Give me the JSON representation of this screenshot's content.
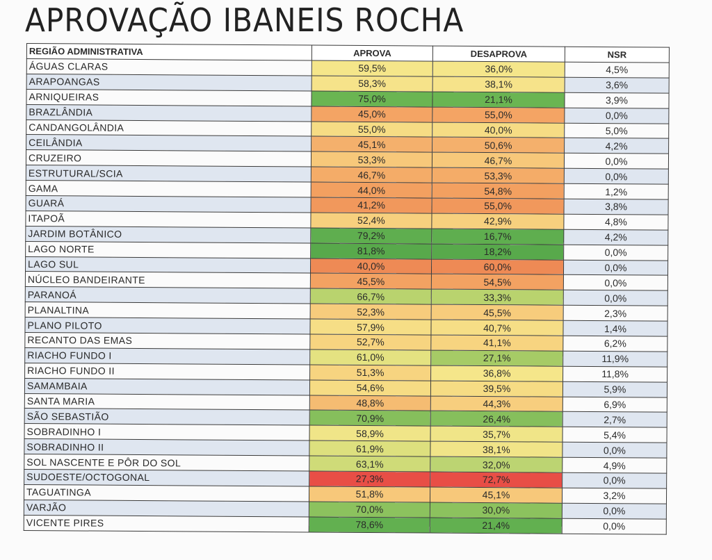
{
  "title": "APROVAÇÃO IBANEIS ROCHA",
  "headers": {
    "region": "REGIÃO ADMINISTRATIVA",
    "approve": "APROVA",
    "disapprove": "DESAPROVA",
    "nsr": "NSR"
  },
  "rows": [
    {
      "region": "ÁGUAS CLARAS",
      "approve": "59,5%",
      "disapprove": "36,0%",
      "nsr": "4,5%",
      "approve_color": "#f5e68a",
      "disapprove_color": "#f5e68a"
    },
    {
      "region": "ARAPOANGAS",
      "approve": "58,3%",
      "disapprove": "38,1%",
      "nsr": "3,6%",
      "approve_color": "#f6e38a",
      "disapprove_color": "#f6e38a"
    },
    {
      "region": "ARNIQUEIRAS",
      "approve": "75,0%",
      "disapprove": "21,1%",
      "nsr": "3,9%",
      "approve_color": "#6ab552",
      "disapprove_color": "#6ab552"
    },
    {
      "region": "BRAZLÂNDIA",
      "approve": "45,0%",
      "disapprove": "55,0%",
      "nsr": "0,0%",
      "approve_color": "#f4a464",
      "disapprove_color": "#f4a464"
    },
    {
      "region": "CANDANGOLÂNDIA",
      "approve": "55,0%",
      "disapprove": "40,0%",
      "nsr": "5,0%",
      "approve_color": "#f6dc84",
      "disapprove_color": "#f6dc84"
    },
    {
      "region": "CEILÂNDIA",
      "approve": "45,1%",
      "disapprove": "50,6%",
      "nsr": "4,2%",
      "approve_color": "#f4b06c",
      "disapprove_color": "#f4b06c"
    },
    {
      "region": "CRUZEIRO",
      "approve": "53,3%",
      "disapprove": "46,7%",
      "nsr": "0,0%",
      "approve_color": "#f7c87a",
      "disapprove_color": "#f7c87a"
    },
    {
      "region": "ESTRUTURAL/SCIA",
      "approve": "46,7%",
      "disapprove": "53,3%",
      "nsr": "0,0%",
      "approve_color": "#f4ac68",
      "disapprove_color": "#f4ac68"
    },
    {
      "region": "GAMA",
      "approve": "44,0%",
      "disapprove": "54,8%",
      "nsr": "1,2%",
      "approve_color": "#f3a060",
      "disapprove_color": "#f3a060"
    },
    {
      "region": "GUARÁ",
      "approve": "41,2%",
      "disapprove": "55,0%",
      "nsr": "3,8%",
      "approve_color": "#f1985c",
      "disapprove_color": "#f1985c"
    },
    {
      "region": "ITAPOÃ",
      "approve": "52,4%",
      "disapprove": "42,9%",
      "nsr": "4,8%",
      "approve_color": "#f7d07e",
      "disapprove_color": "#f7d07e"
    },
    {
      "region": "JARDIM BOTÂNICO",
      "approve": "79,2%",
      "disapprove": "16,7%",
      "nsr": "4,2%",
      "approve_color": "#5fae4f",
      "disapprove_color": "#5fae4f"
    },
    {
      "region": "LAGO NORTE",
      "approve": "81,8%",
      "disapprove": "18,2%",
      "nsr": "0,0%",
      "approve_color": "#58a94b",
      "disapprove_color": "#58a94b"
    },
    {
      "region": "LAGO SUL",
      "approve": "40,0%",
      "disapprove": "60,0%",
      "nsr": "0,0%",
      "approve_color": "#ee8a55",
      "disapprove_color": "#ee8a55"
    },
    {
      "region": "NÚCLEO BANDEIRANTE",
      "approve": "45,5%",
      "disapprove": "54,5%",
      "nsr": "0,0%",
      "approve_color": "#f3a262",
      "disapprove_color": "#f3a262"
    },
    {
      "region": "PARANOÁ",
      "approve": "66,7%",
      "disapprove": "33,3%",
      "nsr": "0,0%",
      "approve_color": "#b9d36e",
      "disapprove_color": "#b9d36e"
    },
    {
      "region": "PLANALTINA",
      "approve": "52,3%",
      "disapprove": "45,5%",
      "nsr": "2,3%",
      "approve_color": "#f7cc7c",
      "disapprove_color": "#f7cc7c"
    },
    {
      "region": "PLANO PILOTO",
      "approve": "57,9%",
      "disapprove": "40,7%",
      "nsr": "1,4%",
      "approve_color": "#f6de86",
      "disapprove_color": "#f6de86"
    },
    {
      "region": "RECANTO DAS EMAS",
      "approve": "52,7%",
      "disapprove": "41,1%",
      "nsr": "6,2%",
      "approve_color": "#f7d480",
      "disapprove_color": "#f7d480"
    },
    {
      "region": "RIACHO FUNDO I",
      "approve": "61,0%",
      "disapprove": "27,1%",
      "nsr": "11,9%",
      "approve_color": "#e4e281",
      "disapprove_color": "#a6cb66"
    },
    {
      "region": "RIACHO FUNDO II",
      "approve": "51,3%",
      "disapprove": "36,8%",
      "nsr": "11,8%",
      "approve_color": "#f7d480",
      "disapprove_color": "#f5e68a"
    },
    {
      "region": "SAMAMBAIA",
      "approve": "54,6%",
      "disapprove": "39,5%",
      "nsr": "5,9%",
      "approve_color": "#f6dc84",
      "disapprove_color": "#f6dc84"
    },
    {
      "region": "SANTA MARIA",
      "approve": "48,8%",
      "disapprove": "44,3%",
      "nsr": "6,9%",
      "approve_color": "#f5bc72",
      "disapprove_color": "#f7ce7e"
    },
    {
      "region": "SÃO SEBASTIÃO",
      "approve": "70,9%",
      "disapprove": "26,4%",
      "nsr": "2,7%",
      "approve_color": "#86bf5c",
      "disapprove_color": "#86bf5c"
    },
    {
      "region": "SOBRADINHO I",
      "approve": "58,9%",
      "disapprove": "35,7%",
      "nsr": "5,4%",
      "approve_color": "#f0e588",
      "disapprove_color": "#f0e588"
    },
    {
      "region": "SOBRADINHO II",
      "approve": "61,9%",
      "disapprove": "38,1%",
      "nsr": "0,0%",
      "approve_color": "#dde07e",
      "disapprove_color": "#f1e488"
    },
    {
      "region": "SOL NASCENTE E PÔR DO SOL",
      "approve": "63,1%",
      "disapprove": "32,0%",
      "nsr": "4,9%",
      "approve_color": "#cfdb78",
      "disapprove_color": "#bcd472"
    },
    {
      "region": "SUDOESTE/OCTOGONAL",
      "approve": "27,3%",
      "disapprove": "72,7%",
      "nsr": "0,0%",
      "approve_color": "#e84e46",
      "disapprove_color": "#e84e46"
    },
    {
      "region": "TAGUATINGA",
      "approve": "51,8%",
      "disapprove": "45,1%",
      "nsr": "3,2%",
      "approve_color": "#f7c87a",
      "disapprove_color": "#f7c87a"
    },
    {
      "region": "VARJÃO",
      "approve": "70,0%",
      "disapprove": "30,0%",
      "nsr": "0,0%",
      "approve_color": "#8cc25e",
      "disapprove_color": "#8cc25e"
    },
    {
      "region": "VICENTE PIRES",
      "approve": "78,6%",
      "disapprove": "21,4%",
      "nsr": "0,0%",
      "approve_color": "#62b050",
      "disapprove_color": "#62b050"
    }
  ]
}
